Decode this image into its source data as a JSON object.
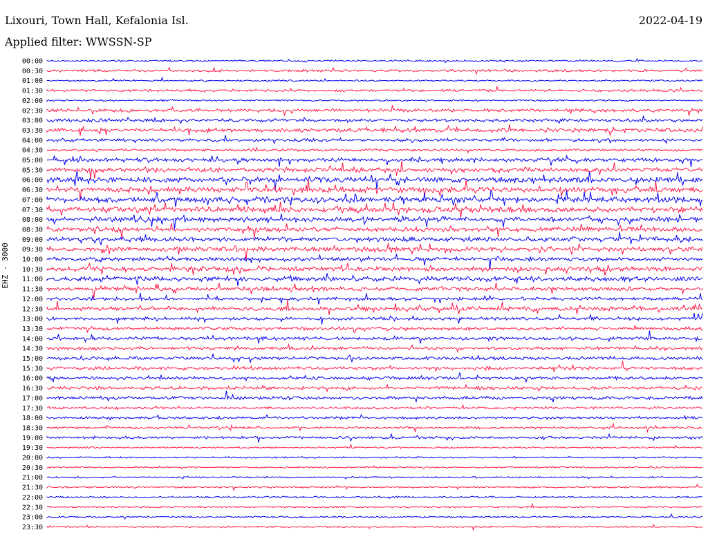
{
  "header": {
    "station": "Lixouri, Town Hall, Kefalonia Isl.",
    "date": "2022-04-19",
    "filter": "Applied filter: WWSSN-SP"
  },
  "chart_data": {
    "type": "line",
    "title": "Lixouri, Town Hall, Kefalonia Isl.",
    "subtitle": "Applied filter: WWSSN-SP",
    "ylabel": "EHZ - 3000",
    "xlabel": "",
    "series_colors": [
      "#0000ee",
      "#ff1744"
    ],
    "y_tick_labels": [
      "00:00",
      "00:30",
      "01:00",
      "01:30",
      "02:00",
      "02:30",
      "03:00",
      "03:30",
      "04:00",
      "04:30",
      "05:00",
      "05:30",
      "06:00",
      "06:30",
      "07:00",
      "07:30",
      "08:00",
      "08:30",
      "09:00",
      "09:30",
      "10:00",
      "10:30",
      "11:00",
      "11:30",
      "12:00",
      "12:30",
      "13:00",
      "13:30",
      "14:00",
      "14:30",
      "15:00",
      "15:30",
      "16:00",
      "16:30",
      "17:00",
      "17:30",
      "18:00",
      "18:30",
      "19:00",
      "19:30",
      "20:00",
      "20:30",
      "21:00",
      "21:30",
      "22:00",
      "22:30",
      "23:00",
      "23:30"
    ],
    "trace_activity": [
      1,
      2,
      1,
      2,
      1,
      3,
      3,
      4,
      3,
      2,
      4,
      5,
      6,
      6,
      6,
      6,
      5,
      5,
      5,
      5,
      4,
      5,
      5,
      4,
      3,
      4,
      3,
      3,
      3,
      3,
      3,
      3,
      3,
      3,
      3,
      2,
      2,
      2,
      2,
      1,
      1,
      1,
      1,
      1,
      1,
      1,
      1,
      1
    ],
    "grid": false,
    "legend": "none"
  }
}
